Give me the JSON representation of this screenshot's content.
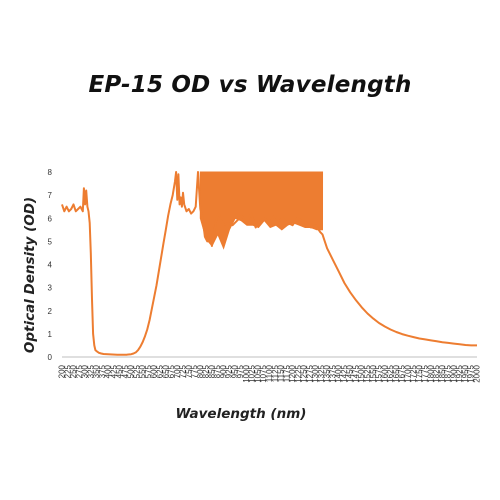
{
  "chart_data": {
    "type": "line",
    "title": "EP-15 OD vs Wavelength",
    "xlabel": "Wavelength (nm)",
    "ylabel": "Optical Density (OD)",
    "xlim": [
      200,
      2000
    ],
    "ylim": [
      0,
      8
    ],
    "x_tick_step": 25,
    "y_ticks": [
      0,
      1,
      2,
      3,
      4,
      5,
      6,
      7,
      8
    ],
    "grid": false,
    "legend": "none",
    "series": [
      {
        "color": "#ED7D31",
        "x": [
          200,
          210,
          220,
          230,
          240,
          250,
          260,
          270,
          280,
          290,
          295,
          300,
          305,
          310,
          315,
          320,
          325,
          330,
          335,
          340,
          345,
          350,
          360,
          370,
          380,
          400,
          420,
          440,
          460,
          480,
          500,
          510,
          520,
          530,
          540,
          550,
          560,
          570,
          580,
          590,
          600,
          610,
          620,
          630,
          640,
          650,
          660,
          670,
          680,
          690,
          695,
          700,
          705,
          710,
          715,
          720,
          725,
          730,
          740,
          750,
          760,
          770,
          780,
          790,
          800,
          810,
          820,
          830,
          840,
          850,
          860,
          870,
          880,
          890,
          900,
          920,
          940,
          960,
          980,
          1000,
          1020,
          1040,
          1060,
          1080,
          1100,
          1120,
          1140,
          1160,
          1180,
          1200,
          1220,
          1240,
          1260,
          1280,
          1300,
          1320,
          1330,
          1340,
          1350,
          1375,
          1400,
          1425,
          1450,
          1475,
          1500,
          1525,
          1550,
          1575,
          1600,
          1625,
          1650,
          1675,
          1700,
          1725,
          1750,
          1775,
          1800,
          1825,
          1850,
          1875,
          1900,
          1925,
          1950,
          1975,
          2000
        ],
        "y": [
          6.6,
          6.3,
          6.5,
          6.3,
          6.4,
          6.6,
          6.3,
          6.4,
          6.5,
          6.3,
          7.3,
          6.6,
          7.2,
          6.5,
          6.3,
          5.8,
          4.5,
          2.5,
          1.0,
          0.5,
          0.3,
          0.25,
          0.18,
          0.15,
          0.13,
          0.12,
          0.11,
          0.1,
          0.1,
          0.1,
          0.12,
          0.15,
          0.2,
          0.3,
          0.45,
          0.65,
          0.9,
          1.2,
          1.6,
          2.1,
          2.6,
          3.1,
          3.7,
          4.3,
          4.9,
          5.5,
          6.1,
          6.6,
          7.0,
          7.6,
          8.0,
          6.8,
          7.9,
          6.6,
          6.9,
          6.5,
          7.1,
          6.6,
          6.3,
          6.4,
          6.2,
          6.3,
          6.5,
          8.0,
          6.4,
          6.0,
          5.2,
          5.0,
          5.5,
          4.8,
          5.4,
          6.0,
          6.2,
          5.9,
          5.7,
          5.8,
          5.7,
          5.9,
          6.1,
          5.8,
          6.2,
          5.6,
          5.9,
          6.0,
          5.8,
          6.1,
          5.9,
          6.0,
          5.8,
          5.7,
          6.0,
          5.9,
          5.8,
          5.6,
          5.7,
          5.4,
          5.3,
          5.0,
          4.7,
          4.2,
          3.7,
          3.2,
          2.8,
          2.45,
          2.15,
          1.88,
          1.66,
          1.47,
          1.32,
          1.19,
          1.08,
          0.99,
          0.92,
          0.86,
          0.8,
          0.76,
          0.72,
          0.68,
          0.64,
          0.61,
          0.58,
          0.55,
          0.52,
          0.5,
          0.5
        ]
      }
    ],
    "noise_band": {
      "x_start": 800,
      "x_end": 1330,
      "lower": [
        6.0,
        5.1,
        4.8,
        5.3,
        4.7,
        5.5,
        6.0,
        5.9,
        5.7,
        5.7,
        5.6,
        5.9,
        5.6,
        5.7,
        5.5,
        5.7,
        5.8,
        5.7,
        5.6,
        5.6,
        5.5,
        5.5
      ],
      "upper": 8.0
    }
  }
}
